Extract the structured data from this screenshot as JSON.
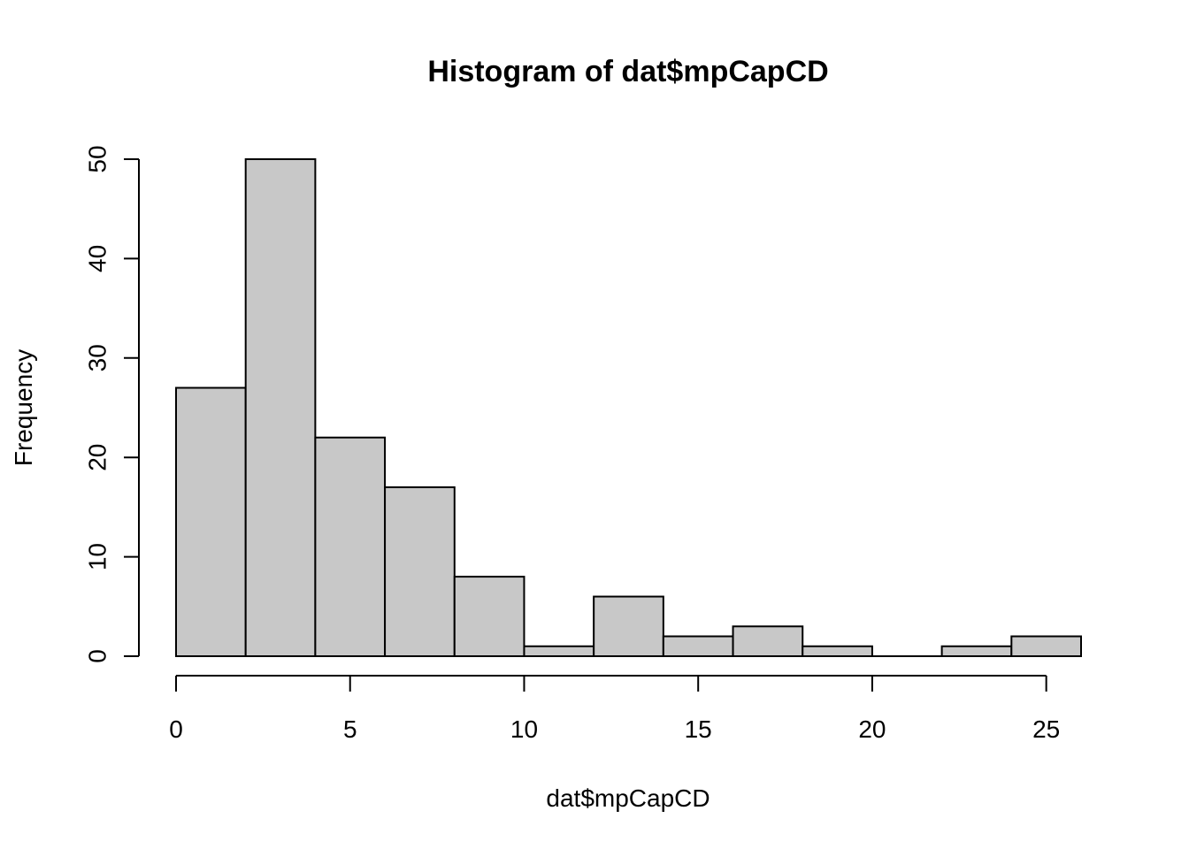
{
  "chart_data": {
    "type": "bar",
    "title": "Histogram of dat$mpCapCD",
    "xlabel": "dat$mpCapCD",
    "ylabel": "Frequency",
    "bin_edges": [
      0,
      2,
      4,
      6,
      8,
      10,
      12,
      14,
      16,
      18,
      20,
      22,
      24,
      26
    ],
    "values": [
      27,
      50,
      22,
      17,
      8,
      1,
      6,
      2,
      3,
      1,
      0,
      1,
      2
    ],
    "xlim": [
      0,
      26
    ],
    "ylim": [
      0,
      50
    ],
    "x_ticks": [
      0,
      5,
      10,
      15,
      20,
      25
    ],
    "x_tick_labels": [
      "0",
      "5",
      "10",
      "15",
      "20",
      "25"
    ],
    "y_ticks": [
      0,
      10,
      20,
      30,
      40,
      50
    ],
    "y_tick_labels": [
      "0",
      "10",
      "20",
      "30",
      "40",
      "50"
    ],
    "bar_fill": "#c8c8c8",
    "bar_stroke": "#000000",
    "grid": false,
    "legend": "none"
  }
}
